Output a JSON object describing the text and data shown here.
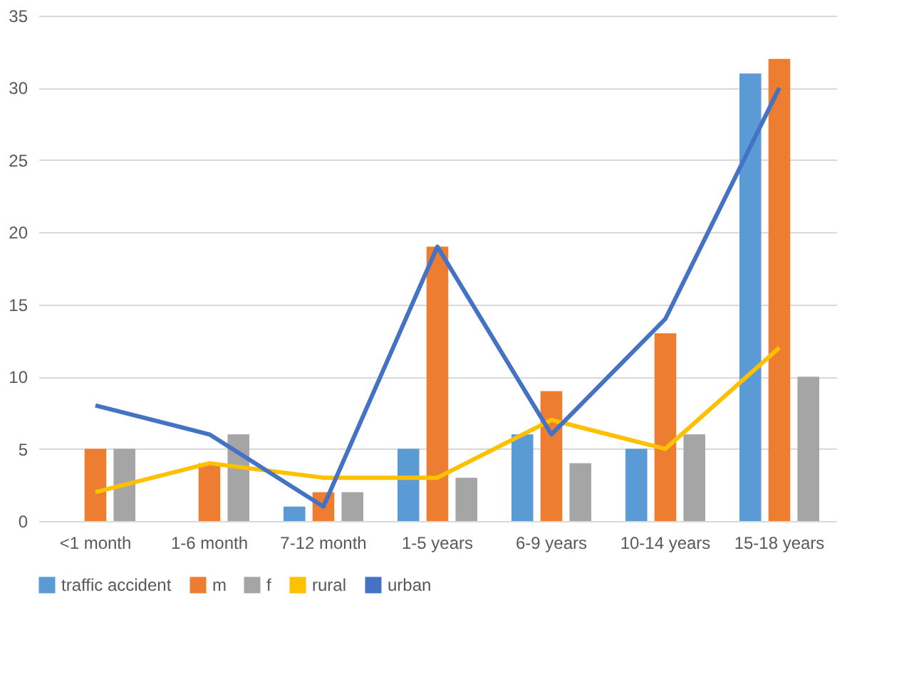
{
  "chart_data": {
    "type": "bar",
    "categories": [
      "<1 month",
      "1-6 month",
      "7-12 month",
      "1-5 years",
      "6-9 years",
      "10-14 years",
      "15-18 years"
    ],
    "series": [
      {
        "name": "traffic accident",
        "color": "#5b9bd5",
        "values": [
          null,
          null,
          1,
          5,
          6,
          5,
          31
        ]
      },
      {
        "name": "m",
        "color": "#ed7d31",
        "values": [
          5,
          4,
          2,
          19,
          9,
          13,
          32
        ]
      },
      {
        "name": "f",
        "color": "#a5a5a5",
        "values": [
          5,
          6,
          2,
          3,
          4,
          6,
          10
        ]
      },
      {
        "name": "rural",
        "type": "line",
        "color": "#ffc000",
        "values": [
          2,
          4,
          3,
          3,
          7,
          5,
          12
        ]
      },
      {
        "name": "urban",
        "type": "line",
        "color": "#4472c4",
        "values": [
          8,
          6,
          1,
          19,
          6,
          14,
          30
        ]
      }
    ],
    "ylim": [
      0,
      35
    ],
    "yticks": [
      0,
      5,
      10,
      15,
      20,
      25,
      30,
      35
    ],
    "grid": "y",
    "legend": "bottom"
  }
}
